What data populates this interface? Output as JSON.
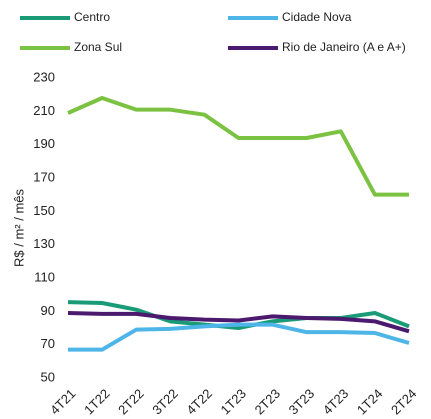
{
  "chart_data": {
    "type": "line",
    "y_label": "R$ / m² / mês",
    "categories": [
      "4T21",
      "1T22",
      "2T22",
      "3T22",
      "4T22",
      "1T23",
      "2T23",
      "3T23",
      "4T23",
      "1T24",
      "2T24"
    ],
    "series": [
      {
        "name": "Centro",
        "color": "#1a9b78",
        "values": [
          95.5,
          95,
          91,
          84,
          82,
          80,
          84,
          86,
          86,
          89,
          81
        ]
      },
      {
        "name": "Cidade Nova",
        "color": "#4db5e8",
        "values": [
          67,
          67,
          79,
          79.5,
          81,
          82,
          82,
          77.5,
          77.5,
          77,
          71
        ]
      },
      {
        "name": "Zona Sul",
        "color": "#7cc242",
        "values": [
          209,
          218,
          211,
          211,
          208,
          194,
          194,
          194,
          198,
          160,
          160
        ]
      },
      {
        "name": "Rio de Janeiro (A e A+)",
        "color": "#4b1a6e",
        "values": [
          89,
          88.5,
          88.5,
          86,
          85,
          84.5,
          87,
          86,
          85.5,
          84,
          78
        ]
      }
    ],
    "ylim": [
      50,
      230
    ],
    "yticks": [
      50,
      70,
      90,
      110,
      130,
      150,
      170,
      190,
      210,
      230
    ],
    "grid": false
  }
}
